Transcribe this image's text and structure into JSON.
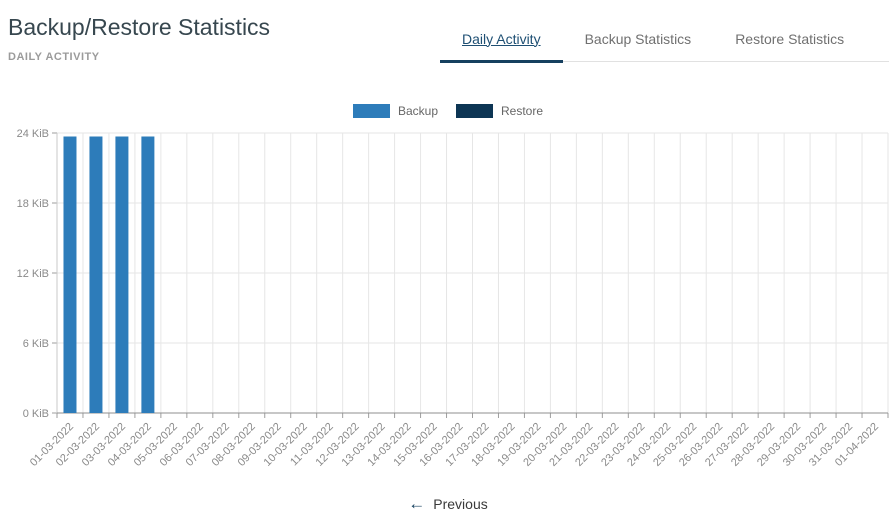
{
  "header": {
    "title": "Backup/Restore Statistics",
    "subtitle": "DAILY ACTIVITY"
  },
  "tabs": [
    {
      "label": "Daily Activity",
      "active": true
    },
    {
      "label": "Backup Statistics",
      "active": false
    },
    {
      "label": "Restore Statistics",
      "active": false
    }
  ],
  "colors": {
    "accent_navy": "#16405f",
    "backup_blue": "#2d7cba",
    "restore_navy": "#0d3554"
  },
  "chart_data": {
    "type": "bar",
    "categories": [
      "01-03-2022",
      "02-03-2022",
      "03-03-2022",
      "04-03-2022",
      "05-03-2022",
      "06-03-2022",
      "07-03-2022",
      "08-03-2022",
      "09-03-2022",
      "10-03-2022",
      "11-03-2022",
      "12-03-2022",
      "13-03-2022",
      "14-03-2022",
      "15-03-2022",
      "16-03-2022",
      "17-03-2022",
      "18-03-2022",
      "19-03-2022",
      "20-03-2022",
      "21-03-2022",
      "22-03-2022",
      "23-03-2022",
      "24-03-2022",
      "25-03-2022",
      "26-03-2022",
      "27-03-2022",
      "28-03-2022",
      "29-03-2022",
      "30-03-2022",
      "31-03-2022",
      "01-04-2022"
    ],
    "series": [
      {
        "name": "Backup",
        "color": "#2d7cba",
        "values": [
          23.7,
          23.7,
          23.7,
          23.7,
          0,
          0,
          0,
          0,
          0,
          0,
          0,
          0,
          0,
          0,
          0,
          0,
          0,
          0,
          0,
          0,
          0,
          0,
          0,
          0,
          0,
          0,
          0,
          0,
          0,
          0,
          0,
          0
        ]
      },
      {
        "name": "Restore",
        "color": "#0d3554",
        "values": [
          0,
          0,
          0,
          0,
          0,
          0,
          0,
          0,
          0,
          0,
          0,
          0,
          0,
          0,
          0,
          0,
          0,
          0,
          0,
          0,
          0,
          0,
          0,
          0,
          0,
          0,
          0,
          0,
          0,
          0,
          0,
          0
        ]
      }
    ],
    "xlabel": "",
    "ylabel": "",
    "unit": "KiB",
    "ylim": [
      0,
      24
    ],
    "ytick_values": [
      0,
      6,
      12,
      18,
      24
    ],
    "ytick_labels": [
      "0 KiB",
      "6 KiB",
      "12 KiB",
      "18 KiB",
      "24 KiB"
    ],
    "grid": true,
    "legend_position": "top-center"
  },
  "footer": {
    "previous_label": "Previous"
  }
}
